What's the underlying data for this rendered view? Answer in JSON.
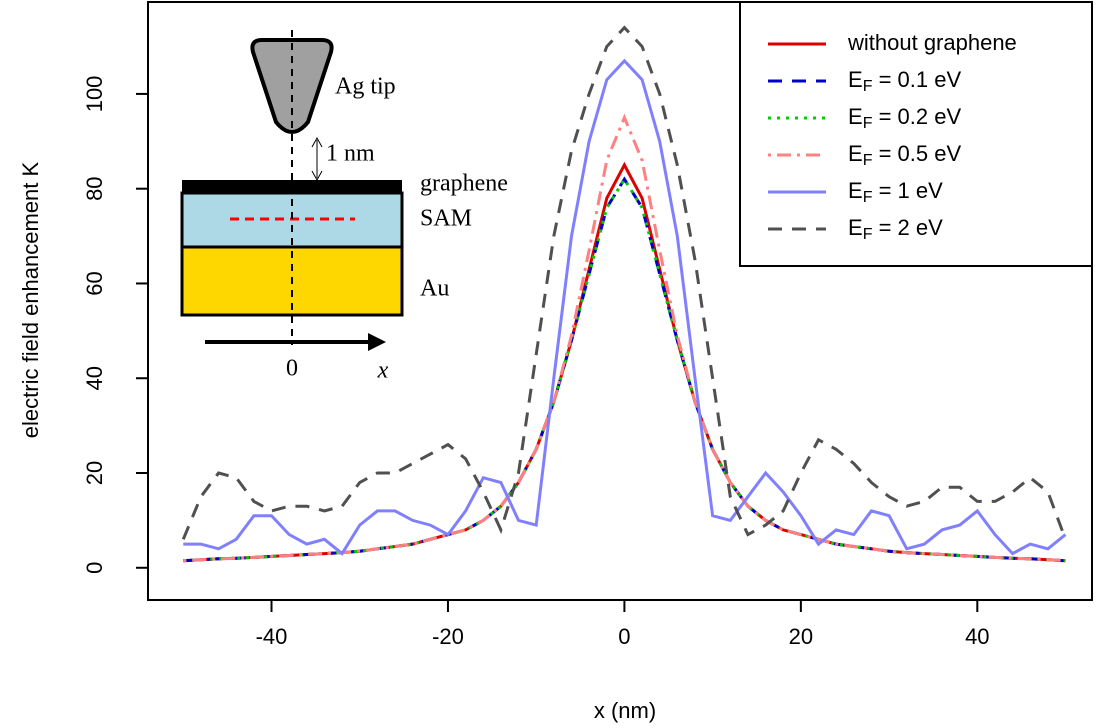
{
  "chart_data": {
    "type": "line",
    "xlabel": "x (nm)",
    "ylabel": "electric field enhancement K",
    "x": [
      -50,
      -48,
      -46,
      -44,
      -42,
      -40,
      -38,
      -36,
      -34,
      -32,
      -30,
      -28,
      -26,
      -24,
      -22,
      -20,
      -18,
      -16,
      -14,
      -12,
      -10,
      -8,
      -6,
      -4,
      -2,
      0,
      2,
      4,
      6,
      8,
      10,
      12,
      14,
      16,
      18,
      20,
      22,
      24,
      26,
      28,
      30,
      32,
      34,
      36,
      38,
      40,
      42,
      44,
      46,
      48,
      50
    ],
    "xlim": [
      -54,
      53
    ],
    "xticks": [
      -40,
      -20,
      0,
      20,
      40
    ],
    "ylim": [
      -6.8,
      119.4
    ],
    "yticks": [
      0,
      20,
      40,
      60,
      80,
      100
    ],
    "legend": "top-right",
    "series": [
      {
        "name": "without graphene",
        "color": "#dd0000",
        "linestyle": "solid",
        "values": [
          1.5,
          1.7,
          1.9,
          2,
          2.2,
          2.4,
          2.6,
          2.8,
          3,
          3.2,
          3.5,
          4,
          4.5,
          5,
          6,
          7,
          8,
          10,
          13,
          18,
          25,
          35,
          48,
          63,
          78,
          85,
          78,
          63,
          48,
          35,
          25,
          18,
          13,
          10,
          8,
          7,
          6,
          5,
          4.5,
          4,
          3.5,
          3.2,
          3,
          2.8,
          2.6,
          2.4,
          2.2,
          2,
          1.9,
          1.7,
          1.5
        ]
      },
      {
        "name": "EF = 0.1 eV",
        "color": "#0000cc",
        "linestyle": "dashed",
        "values": [
          1.5,
          1.7,
          1.9,
          2,
          2.2,
          2.4,
          2.6,
          2.8,
          3,
          3.2,
          3.5,
          4,
          4.5,
          5,
          6,
          7,
          8,
          10,
          13,
          18,
          25,
          35,
          48,
          62,
          76,
          82,
          76,
          62,
          48,
          35,
          25,
          18,
          13,
          10,
          8,
          7,
          6,
          5,
          4.5,
          4,
          3.5,
          3.2,
          3,
          2.8,
          2.6,
          2.4,
          2.2,
          2,
          1.9,
          1.7,
          1.5
        ]
      },
      {
        "name": "EF = 0.2 eV",
        "color": "#00cc00",
        "linestyle": "dotted",
        "values": [
          1.5,
          1.7,
          1.9,
          2,
          2.2,
          2.4,
          2.6,
          2.8,
          3,
          3.2,
          3.5,
          4,
          4.5,
          5,
          6,
          7,
          8,
          10,
          13,
          18,
          25,
          35,
          48,
          62,
          76,
          82,
          76,
          62,
          48,
          35,
          25,
          18,
          13,
          10,
          8,
          7,
          6,
          5,
          4.5,
          4,
          3.5,
          3.2,
          3,
          2.8,
          2.6,
          2.4,
          2.2,
          2,
          1.9,
          1.7,
          1.5
        ]
      },
      {
        "name": "EF = 0.5 eV",
        "color": "#ff8080",
        "linestyle": "dotdash",
        "values": [
          1.5,
          1.7,
          1.9,
          2,
          2.2,
          2.4,
          2.6,
          2.8,
          3,
          3.2,
          3.5,
          4,
          4.5,
          5,
          6,
          7,
          8,
          10,
          13,
          18,
          25,
          35,
          49,
          67,
          86,
          95,
          86,
          67,
          49,
          35,
          25,
          18,
          13,
          10,
          8,
          7,
          6,
          5,
          4.5,
          4,
          3.5,
          3.2,
          3,
          2.8,
          2.6,
          2.4,
          2.2,
          2,
          1.9,
          1.7,
          1.5
        ]
      },
      {
        "name": "EF = 1 eV",
        "color": "#8080ff",
        "linestyle": "solid",
        "values": [
          5,
          5,
          4,
          6,
          11,
          11,
          7,
          5,
          6,
          3,
          9,
          12,
          12,
          10,
          9,
          7,
          12,
          19,
          18,
          10,
          9,
          40,
          70,
          90,
          103,
          107,
          103,
          90,
          70,
          40,
          11,
          10,
          15,
          20,
          16,
          11,
          5,
          8,
          7,
          12,
          11,
          4,
          5,
          8,
          9,
          12,
          7,
          3,
          5,
          4,
          7
        ]
      },
      {
        "name": "EF = 2 eV",
        "color": "#505050",
        "linestyle": "dashed",
        "values": [
          6,
          15,
          20,
          19,
          14,
          12,
          13,
          13,
          12,
          13,
          18,
          20,
          20,
          22,
          24,
          26,
          23,
          16,
          8,
          20,
          45,
          70,
          88,
          100,
          110,
          114,
          110,
          100,
          85,
          65,
          40,
          15,
          7,
          9,
          12,
          20,
          27,
          25,
          22,
          18,
          15,
          13,
          14,
          17,
          17,
          14,
          14,
          16,
          19,
          16,
          6
        ]
      }
    ]
  },
  "inset": {
    "labels": [
      "Ag tip",
      "1 nm",
      "graphene",
      "SAM",
      "Au",
      "0",
      "x"
    ]
  }
}
